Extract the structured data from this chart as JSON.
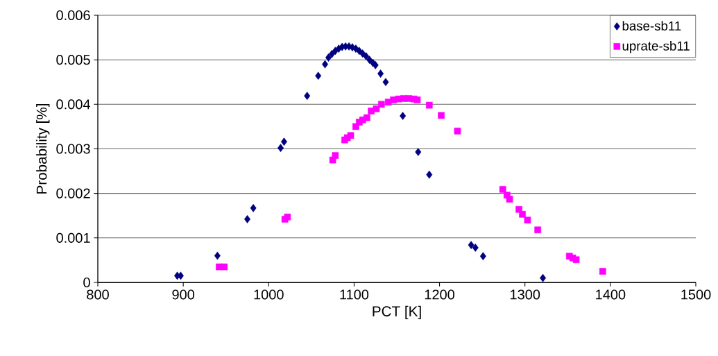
{
  "chart_data": {
    "type": "scatter",
    "xlabel": "PCT [K]",
    "ylabel": "Probability [%]",
    "xlim": [
      800,
      1500
    ],
    "xticks": [
      800,
      900,
      1000,
      1100,
      1200,
      1300,
      1400,
      1500
    ],
    "ylim": [
      0,
      0.006
    ],
    "yticks": [
      0,
      0.001,
      0.002,
      0.003,
      0.004,
      0.005,
      0.006
    ],
    "grid": "y",
    "legend": "top right",
    "series": [
      {
        "name": "base-sb11",
        "color": "#000080",
        "marker": "diamond",
        "x": [
          893,
          897,
          940,
          975,
          982,
          1014,
          1018,
          1045,
          1058,
          1066,
          1070,
          1074,
          1078,
          1082,
          1086,
          1090,
          1094,
          1098,
          1102,
          1106,
          1110,
          1114,
          1118,
          1122,
          1125,
          1131,
          1137,
          1157,
          1175,
          1188,
          1237,
          1242,
          1251,
          1321
        ],
        "values": [
          0.00015,
          0.00015,
          0.0006,
          0.00142,
          0.00167,
          0.00302,
          0.00316,
          0.00419,
          0.00464,
          0.0049,
          0.00505,
          0.00513,
          0.0052,
          0.00525,
          0.00529,
          0.0053,
          0.0053,
          0.00528,
          0.00525,
          0.0052,
          0.00514,
          0.00508,
          0.005,
          0.00493,
          0.00488,
          0.00469,
          0.0045,
          0.00374,
          0.00293,
          0.00242,
          0.00084,
          0.00078,
          0.00059,
          0.0001
        ]
      },
      {
        "name": "uprate-sb11",
        "color": "#ff00ff",
        "marker": "square",
        "x": [
          942,
          948,
          1019,
          1022,
          1075,
          1078,
          1089,
          1092,
          1096,
          1102,
          1106,
          1110,
          1115,
          1120,
          1126,
          1132,
          1140,
          1146,
          1152,
          1158,
          1164,
          1170,
          1174,
          1188,
          1202,
          1221,
          1274,
          1279,
          1282,
          1293,
          1297,
          1303,
          1315,
          1352,
          1356,
          1360,
          1391
        ],
        "values": [
          0.00035,
          0.00035,
          0.00142,
          0.00147,
          0.00275,
          0.00285,
          0.0032,
          0.00325,
          0.0033,
          0.0035,
          0.0036,
          0.00365,
          0.0037,
          0.00385,
          0.0039,
          0.004,
          0.00405,
          0.0041,
          0.00412,
          0.00413,
          0.00413,
          0.00412,
          0.0041,
          0.00398,
          0.00375,
          0.0034,
          0.00209,
          0.00196,
          0.00187,
          0.00164,
          0.00153,
          0.0014,
          0.00118,
          0.00059,
          0.00055,
          0.00051,
          0.00025
        ]
      }
    ]
  }
}
